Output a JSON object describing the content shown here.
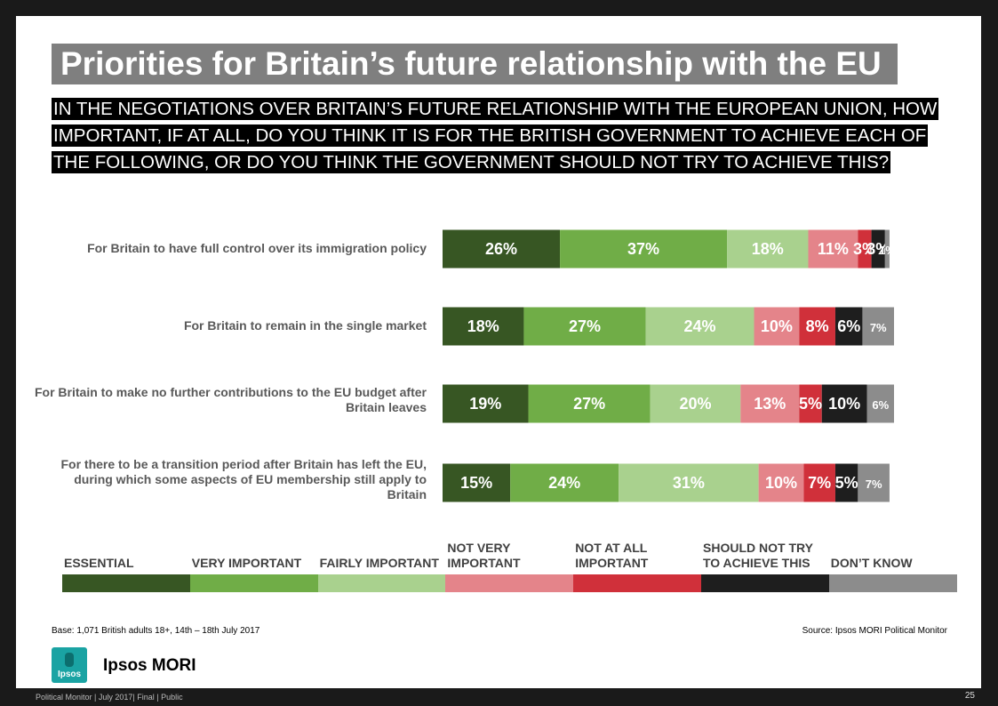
{
  "title": "Priorities for Britain’s future relationship with the EU",
  "question": "IN THE NEGOTIATIONS OVER BRITAIN’S FUTURE RELATIONSHIP WITH THE EUROPEAN UNION, HOW IMPORTANT, IF AT ALL, DO YOU THINK IT IS FOR THE BRITISH GOVERNMENT TO ACHIEVE EACH OF THE FOLLOWING, OR DO YOU THINK THE GOVERNMENT SHOULD NOT TRY TO ACHIEVE THIS?",
  "chart_data": {
    "type": "bar",
    "orientation": "horizontal",
    "stacked": true,
    "percent_suffix": "%",
    "categories": [
      "For Britain to have full control over its immigration policy",
      "For Britain to remain in the single market",
      "For Britain to make no further contributions to the EU budget after Britain leaves",
      "For there to be a transition period after Britain has left the EU, during which some aspects of EU membership still apply to Britain"
    ],
    "series": [
      {
        "name": "ESSENTIAL",
        "color": "#375623",
        "values": [
          26,
          18,
          19,
          15
        ]
      },
      {
        "name": "VERY IMPORTANT",
        "color": "#70ad47",
        "values": [
          37,
          27,
          27,
          24
        ]
      },
      {
        "name": "FAIRLY IMPORTANT",
        "color": "#a9d18e",
        "values": [
          18,
          24,
          20,
          31
        ]
      },
      {
        "name": "NOT VERY IMPORTANT",
        "color": "#e4848a",
        "values": [
          11,
          10,
          13,
          10
        ]
      },
      {
        "name": "NOT AT ALL IMPORTANT",
        "color": "#d0303a",
        "values": [
          3,
          8,
          5,
          7
        ]
      },
      {
        "name": "SHOULD NOT TRY TO ACHIEVE THIS",
        "color": "#1e1e1e",
        "values": [
          3,
          6,
          10,
          5
        ]
      },
      {
        "name": "DON’T KNOW",
        "color": "#8c8c8c",
        "values": [
          1,
          7,
          6,
          7
        ]
      }
    ],
    "legend_position": "bottom",
    "xlim": [
      0,
      100
    ],
    "grid": false
  },
  "footer": {
    "base": "Base: 1,071 British adults 18+, 14th – 18th July 2017",
    "source": "Source: Ipsos MORI Political Monitor",
    "logo_text": "Ipsos MORI",
    "logo_badge": "Ipsos",
    "meta": "Political Monitor | July 2017| Final | Public",
    "page": "25"
  }
}
